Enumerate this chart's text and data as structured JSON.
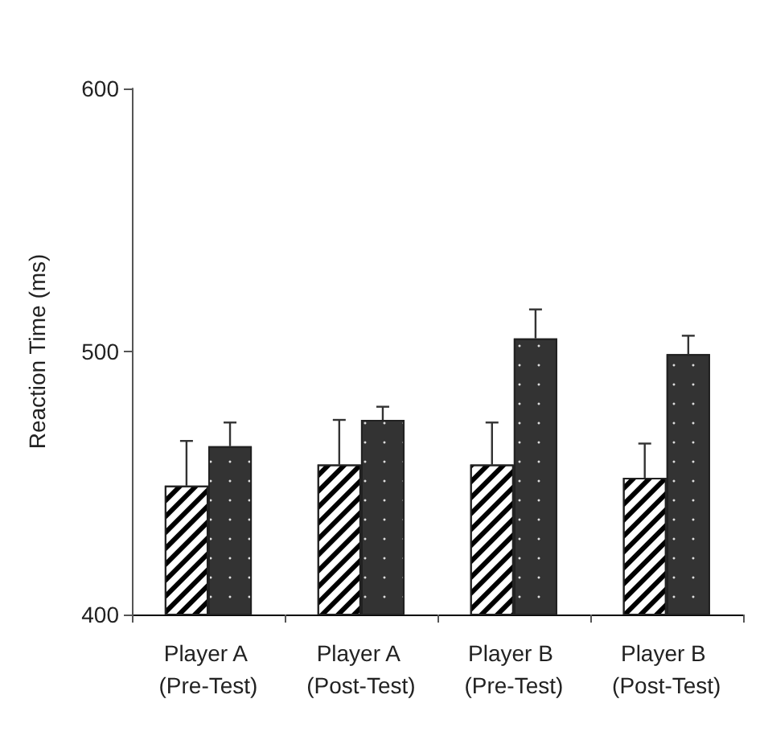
{
  "chart_data": {
    "type": "bar",
    "ylabel": "Reaction Time (ms)",
    "categories": [
      "Player A (Pre-Test)",
      "Player A (Post-Test)",
      "Player B (Pre-Test)",
      "Player B (Post-Test)"
    ],
    "series": [
      {
        "color": "#ffffff",
        "values": [
          449,
          457,
          457,
          452
        ],
        "errors": [
          [
            449,
            466
          ],
          [
            457,
            474
          ],
          [
            457,
            473
          ],
          [
            452,
            465
          ]
        ]
      },
      {
        "color": "#333333",
        "values": [
          464,
          474,
          505,
          499
        ],
        "errors": [
          [
            464,
            473
          ],
          [
            474,
            479
          ],
          [
            505,
            516
          ],
          [
            499,
            506
          ]
        ]
      }
    ],
    "ylim": [
      400,
      600
    ],
    "yticks": [
      400,
      500,
      600
    ],
    "grid": false
  }
}
